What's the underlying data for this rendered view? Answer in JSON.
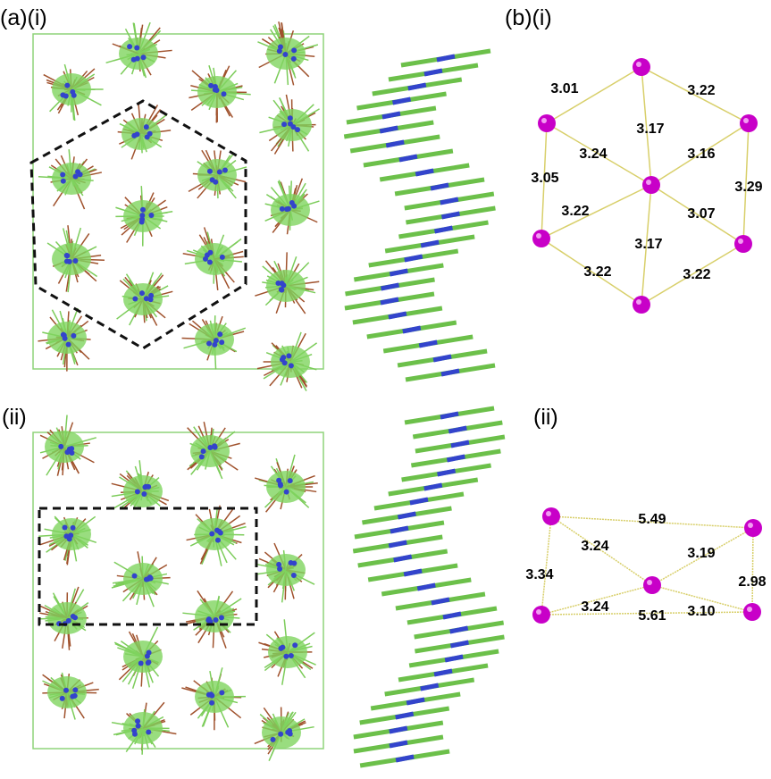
{
  "panels": [
    {
      "label": "(a)(i)"
    },
    {
      "label": "(ii)"
    },
    {
      "label": "(b)(i)"
    },
    {
      "label": "(ii)"
    }
  ],
  "diagrams": [
    {
      "edges": [
        {
          "label": "3.01"
        },
        {
          "label": "3.22"
        },
        {
          "label": "3.17"
        },
        {
          "label": "3.24"
        },
        {
          "label": "3.16"
        },
        {
          "label": "3.05"
        },
        {
          "label": "3.29"
        },
        {
          "label": "3.22"
        },
        {
          "label": "3.07"
        },
        {
          "label": "3.17"
        },
        {
          "label": "3.22"
        },
        {
          "label": "3.22"
        }
      ]
    },
    {
      "edges": [
        {
          "label": "5.49"
        },
        {
          "label": "3.24"
        },
        {
          "label": "3.19"
        },
        {
          "label": "3.34"
        },
        {
          "label": "2.98"
        },
        {
          "label": "3.24"
        },
        {
          "label": "3.10"
        },
        {
          "label": "5.61"
        }
      ]
    }
  ]
}
